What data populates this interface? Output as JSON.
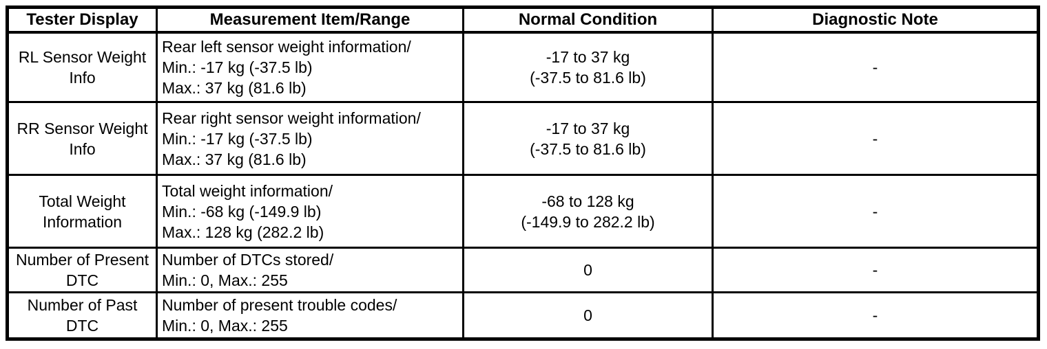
{
  "colors": {
    "background": "#ffffff",
    "border": "#000000",
    "text": "#000000"
  },
  "table": {
    "headers": [
      "Tester Display",
      "Measurement Item/Range",
      "Normal Condition",
      "Diagnostic Note"
    ],
    "rows": [
      {
        "tester_display": "RL Sensor Weight\nInfo",
        "measurement_item_range": "Rear left sensor weight information/\nMin.: -17 kg (-37.5 lb)\nMax.: 37 kg (81.6 lb)",
        "normal_condition": "-17 to 37 kg\n(-37.5 to 81.6 lb)",
        "diagnostic_note": "-"
      },
      {
        "tester_display": "RR Sensor Weight\nInfo",
        "measurement_item_range": "Rear right sensor weight information/\nMin.: -17 kg (-37.5 lb)\nMax.: 37 kg (81.6 lb)",
        "normal_condition": "-17 to 37 kg\n(-37.5 to 81.6 lb)",
        "diagnostic_note": "-"
      },
      {
        "tester_display": "Total Weight\nInformation",
        "measurement_item_range": "Total weight information/\nMin.: -68 kg (-149.9 lb)\nMax.: 128 kg (282.2 lb)",
        "normal_condition": "-68 to 128 kg\n(-149.9 to 282.2 lb)",
        "diagnostic_note": "-"
      },
      {
        "tester_display": "Number of Present\nDTC",
        "measurement_item_range": "Number of DTCs stored/\nMin.: 0, Max.: 255",
        "normal_condition": "0",
        "diagnostic_note": "-"
      },
      {
        "tester_display": "Number of Past\nDTC",
        "measurement_item_range": "Number of present trouble codes/\nMin.: 0, Max.: 255",
        "normal_condition": "0",
        "diagnostic_note": "-"
      }
    ]
  }
}
